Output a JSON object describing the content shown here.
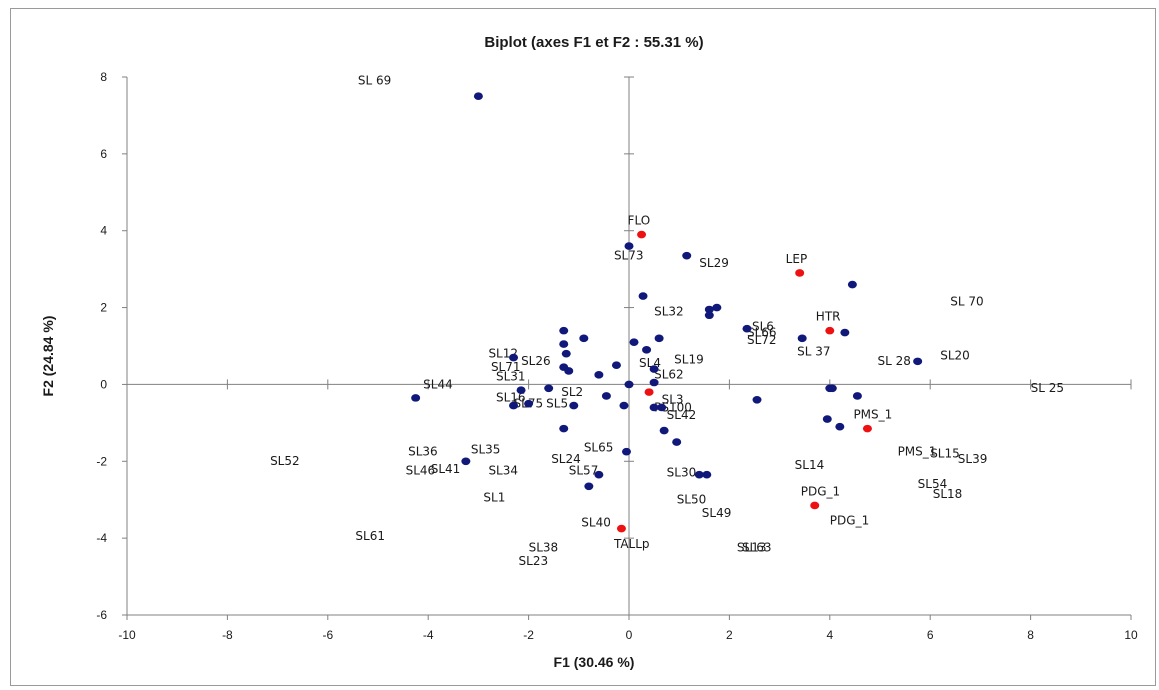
{
  "chart_data": {
    "type": "scatter",
    "title": "Biplot (axes F1 et F2 : 55.31 %)",
    "xlabel": "F1 (30.46 %)",
    "ylabel": "F2 (24.84 %)",
    "xlim": [
      -10,
      10
    ],
    "ylim": [
      -6,
      8
    ],
    "xticks": [
      "-10",
      "-8",
      "-6",
      "-4",
      "-2",
      "0",
      "2",
      "4",
      "6",
      "8",
      "10"
    ],
    "yticks": [
      "-6",
      "-4",
      "-2",
      "0",
      "2",
      "4",
      "6",
      "8"
    ],
    "colors": {
      "observations": "#10187a",
      "variables": "#ee1111",
      "axes": "#808080"
    },
    "observations": [
      {
        "x": -3.0,
        "y": 7.5,
        "label": ""
      },
      {
        "x": 1.15,
        "y": 3.35,
        "label": ""
      },
      {
        "x": 0.0,
        "y": 3.6,
        "label": ""
      },
      {
        "x": 0.28,
        "y": 2.3,
        "label": ""
      },
      {
        "x": 4.45,
        "y": 2.6,
        "label": ""
      },
      {
        "x": 1.6,
        "y": 1.95,
        "label": ""
      },
      {
        "x": 1.75,
        "y": 2.0,
        "label": ""
      },
      {
        "x": 1.6,
        "y": 1.8,
        "label": ""
      },
      {
        "x": 2.35,
        "y": 1.45,
        "label": ""
      },
      {
        "x": 3.45,
        "y": 1.2,
        "label": ""
      },
      {
        "x": 4.3,
        "y": 1.35,
        "label": ""
      },
      {
        "x": 5.75,
        "y": 0.6,
        "label": ""
      },
      {
        "x": 0.6,
        "y": 1.2,
        "label": ""
      },
      {
        "x": 0.1,
        "y": 1.1,
        "label": ""
      },
      {
        "x": 0.35,
        "y": 0.9,
        "label": ""
      },
      {
        "x": -0.25,
        "y": 0.5,
        "label": ""
      },
      {
        "x": 0.5,
        "y": 0.4,
        "label": ""
      },
      {
        "x": -0.6,
        "y": 0.25,
        "label": ""
      },
      {
        "x": 0.0,
        "y": 0.0,
        "label": ""
      },
      {
        "x": 0.5,
        "y": 0.05,
        "label": ""
      },
      {
        "x": -0.9,
        "y": 1.2,
        "label": ""
      },
      {
        "x": -1.3,
        "y": 1.4,
        "label": ""
      },
      {
        "x": -1.3,
        "y": 1.05,
        "label": ""
      },
      {
        "x": -1.25,
        "y": 0.8,
        "label": ""
      },
      {
        "x": -1.3,
        "y": 0.45,
        "label": ""
      },
      {
        "x": -1.2,
        "y": 0.35,
        "label": ""
      },
      {
        "x": -2.3,
        "y": 0.7,
        "label": ""
      },
      {
        "x": -1.6,
        "y": -0.1,
        "label": ""
      },
      {
        "x": -2.15,
        "y": -0.15,
        "label": ""
      },
      {
        "x": -4.25,
        "y": -0.35,
        "label": ""
      },
      {
        "x": -2.3,
        "y": -0.55,
        "label": ""
      },
      {
        "x": -2.0,
        "y": -0.5,
        "label": ""
      },
      {
        "x": -1.1,
        "y": -0.55,
        "label": ""
      },
      {
        "x": -0.45,
        "y": -0.3,
        "label": ""
      },
      {
        "x": -0.1,
        "y": -0.55,
        "label": ""
      },
      {
        "x": 0.5,
        "y": -0.6,
        "label": ""
      },
      {
        "x": 0.65,
        "y": -0.6,
        "label": ""
      },
      {
        "x": -1.3,
        "y": -1.15,
        "label": ""
      },
      {
        "x": 0.7,
        "y": -1.2,
        "label": ""
      },
      {
        "x": 0.95,
        "y": -1.5,
        "label": ""
      },
      {
        "x": 2.55,
        "y": -0.4,
        "label": ""
      },
      {
        "x": 4.0,
        "y": -0.1,
        "label": ""
      },
      {
        "x": 4.05,
        "y": -0.1,
        "label": ""
      },
      {
        "x": 4.55,
        "y": -0.3,
        "label": ""
      },
      {
        "x": 3.95,
        "y": -0.9,
        "label": ""
      },
      {
        "x": 4.2,
        "y": -1.1,
        "label": ""
      },
      {
        "x": -0.05,
        "y": -1.75,
        "label": ""
      },
      {
        "x": -3.25,
        "y": -2.0,
        "label": ""
      },
      {
        "x": -0.6,
        "y": -2.35,
        "label": ""
      },
      {
        "x": -0.8,
        "y": -2.65,
        "label": ""
      },
      {
        "x": 1.4,
        "y": -2.35,
        "label": ""
      },
      {
        "x": 1.55,
        "y": -2.35,
        "label": ""
      }
    ],
    "variables": [
      {
        "x": 0.25,
        "y": 3.9,
        "label": "FLO"
      },
      {
        "x": 3.4,
        "y": 2.9,
        "label": "LEP"
      },
      {
        "x": 4.0,
        "y": 1.4,
        "label": "HTR"
      },
      {
        "x": 0.4,
        "y": -0.2,
        "label": ""
      },
      {
        "x": 4.75,
        "y": -1.15,
        "label": "PMS_1"
      },
      {
        "x": 3.7,
        "y": -3.15,
        "label": "PDG_1"
      },
      {
        "x": -0.15,
        "y": -3.75,
        "label": ""
      }
    ],
    "labels": [
      {
        "x": -5.4,
        "y": 7.8,
        "text": "SL 69"
      },
      {
        "x": 1.4,
        "y": 3.05,
        "text": "SL29"
      },
      {
        "x": -0.3,
        "y": 3.25,
        "text": "SL73"
      },
      {
        "x": 0.5,
        "y": 1.8,
        "text": "SL32"
      },
      {
        "x": 6.4,
        "y": 2.05,
        "text": "SL 70"
      },
      {
        "x": 2.45,
        "y": 1.4,
        "text": "SL6"
      },
      {
        "x": 2.35,
        "y": 1.25,
        "text": "SL66"
      },
      {
        "x": 2.35,
        "y": 1.05,
        "text": "SL72"
      },
      {
        "x": 3.35,
        "y": 0.75,
        "text": "SL 37"
      },
      {
        "x": 4.95,
        "y": 0.5,
        "text": "SL 28"
      },
      {
        "x": 6.2,
        "y": 0.65,
        "text": "SL20"
      },
      {
        "x": 8.0,
        "y": -0.2,
        "text": "SL 25"
      },
      {
        "x": -2.8,
        "y": 0.7,
        "text": "SL12"
      },
      {
        "x": -2.15,
        "y": 0.5,
        "text": "SL26"
      },
      {
        "x": -2.75,
        "y": 0.35,
        "text": "SL71"
      },
      {
        "x": -2.65,
        "y": 0.1,
        "text": "SL31"
      },
      {
        "x": 0.9,
        "y": 0.55,
        "text": "SL19"
      },
      {
        "x": 0.2,
        "y": 0.45,
        "text": "SL4"
      },
      {
        "x": 0.5,
        "y": 0.15,
        "text": "SL62"
      },
      {
        "x": -4.1,
        "y": -0.1,
        "text": "SL44"
      },
      {
        "x": -2.65,
        "y": -0.45,
        "text": "SL16"
      },
      {
        "x": -2.3,
        "y": -0.6,
        "text": "SL75"
      },
      {
        "x": -1.65,
        "y": -0.6,
        "text": "SL5"
      },
      {
        "x": -1.35,
        "y": -0.3,
        "text": "SL2"
      },
      {
        "x": 0.65,
        "y": -0.5,
        "text": "SL3"
      },
      {
        "x": 0.5,
        "y": -0.7,
        "text": "PS100"
      },
      {
        "x": 0.75,
        "y": -0.9,
        "text": "SL42"
      },
      {
        "x": -0.9,
        "y": -1.75,
        "text": "SL65"
      },
      {
        "x": -4.4,
        "y": -1.85,
        "text": "SL36"
      },
      {
        "x": -3.15,
        "y": -1.8,
        "text": "SL35"
      },
      {
        "x": -7.15,
        "y": -2.1,
        "text": "SL52"
      },
      {
        "x": -1.55,
        "y": -2.05,
        "text": "SL24"
      },
      {
        "x": -4.45,
        "y": -2.35,
        "text": "SL46"
      },
      {
        "x": -3.95,
        "y": -2.3,
        "text": "SL41"
      },
      {
        "x": -2.8,
        "y": -2.35,
        "text": "SL34"
      },
      {
        "x": -1.2,
        "y": -2.35,
        "text": "SL57"
      },
      {
        "x": 0.75,
        "y": -2.4,
        "text": "SL30"
      },
      {
        "x": 3.3,
        "y": -2.2,
        "text": "SL14"
      },
      {
        "x": 5.35,
        "y": -1.85,
        "text": "PMS_1"
      },
      {
        "x": 6.0,
        "y": -1.9,
        "text": "SL15"
      },
      {
        "x": 6.55,
        "y": -2.05,
        "text": "SL39"
      },
      {
        "x": 5.75,
        "y": -2.7,
        "text": "SL54"
      },
      {
        "x": 6.05,
        "y": -2.95,
        "text": "SL18"
      },
      {
        "x": 4.0,
        "y": -3.65,
        "text": "PDG_1"
      },
      {
        "x": -2.9,
        "y": -3.05,
        "text": "SL1"
      },
      {
        "x": 0.95,
        "y": -3.1,
        "text": "SL50"
      },
      {
        "x": 1.45,
        "y": -3.45,
        "text": "SL49"
      },
      {
        "x": -0.95,
        "y": -3.7,
        "text": "SL40"
      },
      {
        "x": -2.0,
        "y": -4.35,
        "text": "SL38"
      },
      {
        "x": -0.3,
        "y": -4.25,
        "text": "TALLp"
      },
      {
        "x": 2.15,
        "y": -4.35,
        "text": "SL13"
      },
      {
        "x": 2.25,
        "y": -4.35,
        "text": "SL63"
      },
      {
        "x": -2.2,
        "y": -4.7,
        "text": "SL23"
      },
      {
        "x": -5.45,
        "y": -4.05,
        "text": "SL61"
      }
    ]
  }
}
